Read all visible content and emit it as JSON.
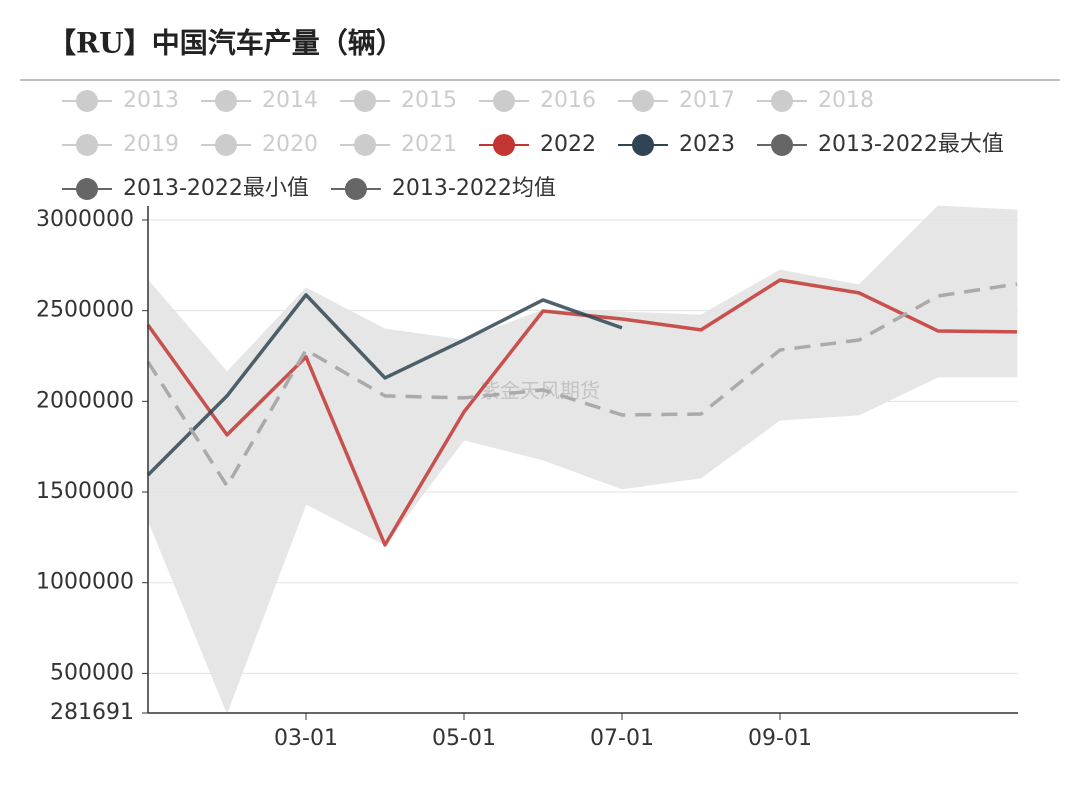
{
  "chart_data": {
    "type": "line",
    "title": "【RU】中国汽车产量（辆）",
    "watermark": "紫金天风期货",
    "categories": [
      null,
      null,
      "03-01",
      null,
      "05-01",
      null,
      "07-01",
      null,
      "09-01",
      null,
      null,
      null
    ],
    "ylim": [
      281691,
      3077000
    ],
    "yticks": [
      281691,
      500000,
      1000000,
      1500000,
      2000000,
      2500000,
      3000000
    ],
    "grid": true,
    "band_color": "#e6e6e6",
    "series": [
      {
        "name": "2013",
        "color": "#cccccc",
        "hidden": true
      },
      {
        "name": "2014",
        "color": "#cccccc",
        "hidden": true
      },
      {
        "name": "2015",
        "color": "#cccccc",
        "hidden": true
      },
      {
        "name": "2016",
        "color": "#cccccc",
        "hidden": true
      },
      {
        "name": "2017",
        "color": "#cccccc",
        "hidden": true
      },
      {
        "name": "2018",
        "color": "#cccccc",
        "hidden": true
      },
      {
        "name": "2019",
        "color": "#cccccc",
        "hidden": true
      },
      {
        "name": "2020",
        "color": "#cccccc",
        "hidden": true
      },
      {
        "name": "2021",
        "color": "#cccccc",
        "hidden": true
      },
      {
        "name": "2022",
        "color": "#c23531",
        "values": [
          2421000,
          1815000,
          2245000,
          1208000,
          1942000,
          2498000,
          2454000,
          2394000,
          2669000,
          2598000,
          2388000,
          2383000
        ]
      },
      {
        "name": "2023",
        "color": "#2f4554",
        "values": [
          1594000,
          2030000,
          2587000,
          2129000,
          2338000,
          2559000,
          2405000,
          null,
          null,
          null,
          null,
          null
        ]
      },
      {
        "name": "2013-2022最大值",
        "color": "#666666",
        "role": "band_max",
        "values": [
          2669000,
          2162000,
          2625000,
          2399000,
          2338000,
          2504000,
          2493000,
          2476000,
          2724000,
          2642000,
          3077000,
          3055000
        ]
      },
      {
        "name": "2013-2022最小值",
        "color": "#666666",
        "role": "band_min",
        "values": [
          1346000,
          281691,
          1434000,
          1208000,
          1787000,
          1677000,
          1517000,
          1578000,
          1897000,
          1925000,
          2134000,
          2134000
        ]
      },
      {
        "name": "2013-2022均值",
        "color": "#aaaaaa",
        "legend_color": "#666666",
        "dashed": true,
        "values": [
          2217000,
          1534000,
          2283000,
          2030000,
          2019000,
          2063000,
          1925000,
          1930000,
          2283000,
          2338000,
          2581000,
          2647000
        ]
      }
    ]
  }
}
